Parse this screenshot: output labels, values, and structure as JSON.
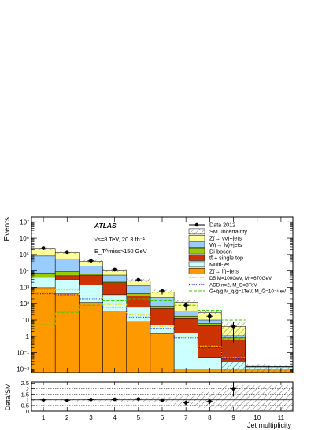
{
  "chart_data": [
    {
      "type": "stacked-step-histogram",
      "experiment": "ATLAS",
      "conditions": [
        "√s=8 TeV, 20.3 fb⁻¹",
        "E_T^miss>150 GeV"
      ],
      "ylabel": "Events",
      "yscale": "log",
      "ylim": [
        0.006,
        20000000
      ],
      "y_tick_labels": [
        "10⁻²",
        "10⁻¹",
        "1",
        "10",
        "10²",
        "10³",
        "10⁴",
        "10⁵",
        "10⁶",
        "10⁷"
      ],
      "y_tick_values": [
        0.01,
        0.1,
        1,
        10,
        100,
        1000,
        10000,
        100000,
        1000000,
        10000000
      ],
      "bins": [
        1,
        2,
        3,
        4,
        5,
        6,
        7,
        8,
        9,
        10,
        11
      ],
      "stack_order_bottom_to_top": [
        "zll",
        "multijet",
        "ttbar",
        "diboson",
        "wlnu",
        "znunu"
      ],
      "stack_cumulative_tops": {
        "zll": [
          950,
          400,
          120,
          35,
          8,
          1.5,
          0.01,
          0.01,
          0.01,
          0.01,
          0.01
        ],
        "multijet": [
          4000,
          3000,
          1400,
          350,
          60,
          5,
          1.6,
          0.05,
          0.03,
          0.013,
          0.013
        ],
        "ttbar": [
          4300,
          5000,
          5500,
          1900,
          300,
          50,
          12,
          4.5,
          0.6,
          0.013,
          0.013
        ],
        "diboson": [
          7500,
          9000,
          6500,
          2300,
          420,
          70,
          17,
          6,
          0.8,
          0.013,
          0.013
        ],
        "wlnu": [
          80000,
          55000,
          20000,
          5500,
          1200,
          230,
          35,
          10,
          1.1,
          0.014,
          0.014
        ],
        "znunu": [
          220000,
          130000,
          38000,
          10000,
          2500,
          520,
          120,
          28,
          4,
          0.016,
          0.015
        ]
      },
      "sm_uncertainty_top": [
        260000,
        160000,
        48000,
        13000,
        3300,
        700,
        170,
        42,
        8,
        0.02,
        0.018
      ],
      "data_2012": {
        "x": [
          1,
          2,
          3,
          4,
          5,
          6,
          7,
          8,
          9
        ],
        "y": [
          250000,
          140000,
          42000,
          12000,
          2800,
          600,
          80,
          17,
          4
        ],
        "yerr_rel": [
          0.02,
          0.03,
          0.05,
          0.1,
          0.2,
          0.4,
          0.5,
          0.6,
          0.9
        ]
      },
      "signals": [
        {
          "key": "d5",
          "label": "D5 M=100GeV, M*=670GeV",
          "values": [
            600,
            700,
            300,
            90,
            20,
            4,
            1,
            0.25,
            0.05
          ]
        },
        {
          "key": "add",
          "label": "ADD n=2, M_D=3TeV",
          "values": [
            400,
            350,
            200,
            60,
            15,
            3,
            0.8,
            0.2,
            0.04
          ]
        },
        {
          "key": "gravitino",
          "label": "G̃+q̃/g̃ M_q̃/g̃=1TeV, M_G̃=10⁻⁴ eV",
          "values": [
            5,
            30,
            80,
            150,
            200,
            150,
            80,
            40,
            10
          ]
        }
      ],
      "legend_placement": "top-right",
      "legend": [
        {
          "key": "data",
          "label": "Data 2012"
        },
        {
          "key": "sm_unc",
          "label": "SM uncertainty"
        },
        {
          "key": "znunu",
          "label": "Z(→ νν)+jets"
        },
        {
          "key": "wlnu",
          "label": "W(→ lν)+jets"
        },
        {
          "key": "diboson",
          "label": "Di-boson"
        },
        {
          "key": "ttbar",
          "label": "tt̄ + single top"
        },
        {
          "key": "multijet",
          "label": "Multi-jet"
        },
        {
          "key": "zll",
          "label": "Z(→ ll)+jets"
        },
        {
          "key": "d5",
          "label": "D5 M=100GeV, M*=670GeV"
        },
        {
          "key": "add",
          "label": "ADD n=2, M_D=3TeV"
        },
        {
          "key": "gravitino",
          "label": "G̃+q̃/g̃ M_q̃/g̃=1TeV, M_G̃=10⁻⁴ eV"
        }
      ],
      "colors": {
        "znunu": "#ffff99",
        "wlnu": "#99ccff",
        "diboson": "#99cc00",
        "ttbar": "#cc3300",
        "multijet": "#ccffff",
        "zll": "#ff9900",
        "d5": "#ffcc00",
        "add": "#0000cc",
        "gravitino": "#33cc00"
      }
    },
    {
      "type": "ratio",
      "ylabel": "Data/SM",
      "xlabel": "Jet multiplicity",
      "ylim": [
        0,
        2.6
      ],
      "y_tick_labels": [
        "0",
        "0.5",
        "1",
        "1.5",
        "2",
        "2.5"
      ],
      "y_tick_values": [
        0,
        0.5,
        1,
        1.5,
        2,
        2.5
      ],
      "x_tick_labels": [
        "1",
        "2",
        "3",
        "4",
        "5",
        "6",
        "7",
        "8",
        "9",
        "10",
        "11"
      ],
      "x_tick_values": [
        1,
        2,
        3,
        4,
        5,
        6,
        7,
        8,
        9,
        10,
        11
      ],
      "xlim": [
        0.5,
        11.5
      ],
      "reference_lines": [
        0.5,
        1,
        1.5,
        2
      ],
      "points": {
        "x": [
          1,
          2,
          3,
          4,
          5,
          6,
          7,
          8,
          9
        ],
        "y": [
          1.0,
          0.97,
          1.03,
          1.05,
          1.08,
          0.98,
          0.75,
          0.86,
          2.0
        ],
        "yerr": [
          0.02,
          0.02,
          0.03,
          0.05,
          0.08,
          0.12,
          0.2,
          0.25,
          0.7
        ]
      },
      "uncertainty_band_halfwidth": [
        0.1,
        0.12,
        0.13,
        0.15,
        0.18,
        0.25,
        0.5,
        0.7,
        1.3,
        1.3,
        1.3
      ]
    }
  ]
}
